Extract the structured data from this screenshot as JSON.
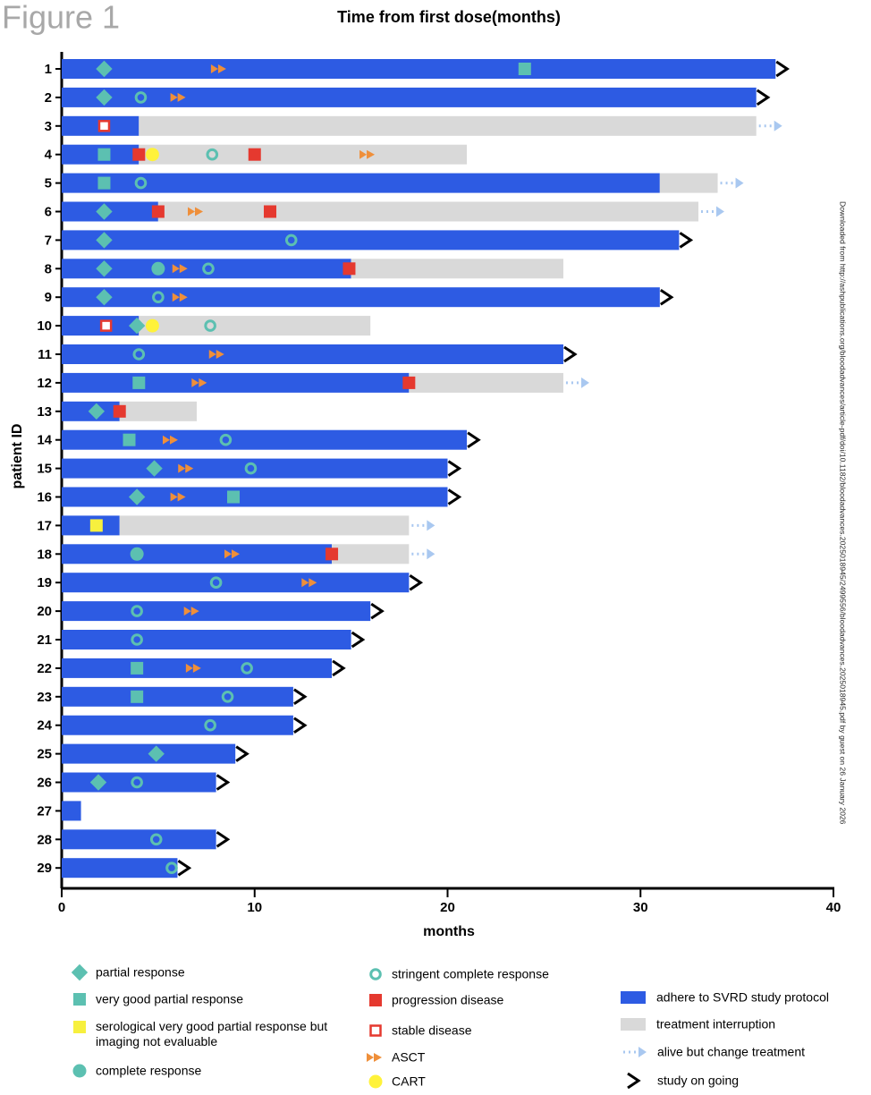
{
  "figure_label": "Figure 1",
  "side_note": "Downloaded from http://ashpublications.org/bloodadvances/article-pdf/doi/10.1182/bloodadvances.2025018945/2499556/bloodadvances.2025018945.pdf by guest on 26 January 2026",
  "chart_data": {
    "type": "swimmer",
    "title": "Time from first dose(months)",
    "x_label": "months",
    "y_label": "patient ID",
    "xlim": [
      0,
      40
    ],
    "xticks": [
      0,
      10,
      20,
      30,
      40
    ],
    "categories": [
      "1",
      "2",
      "3",
      "4",
      "5",
      "6",
      "7",
      "8",
      "9",
      "10",
      "11",
      "12",
      "13",
      "14",
      "15",
      "16",
      "17",
      "18",
      "19",
      "20",
      "21",
      "22",
      "23",
      "24",
      "25",
      "26",
      "27",
      "28",
      "29"
    ],
    "series": [
      {
        "name": "adhere to SVRD study protocol",
        "color": "#2d5be3",
        "values": [
          37,
          36,
          4,
          4,
          31,
          5,
          32,
          15,
          31,
          4,
          26,
          18,
          3,
          21,
          20,
          20,
          3,
          14,
          18,
          16,
          15,
          14,
          12,
          12,
          9,
          8,
          1,
          8,
          6
        ]
      },
      {
        "name": "treatment interruption",
        "color": "#d9d9d9",
        "values": [
          null,
          null,
          32,
          17,
          3,
          28,
          null,
          11,
          null,
          12,
          null,
          8,
          4,
          null,
          null,
          null,
          15,
          4,
          null,
          null,
          null,
          null,
          null,
          null,
          null,
          null,
          null,
          null,
          null
        ]
      }
    ],
    "markers": [
      {
        "name": "partial response",
        "shape": "diamond",
        "color": "#5cc0b1",
        "patients": [
          "1",
          "2",
          "6",
          "7",
          "8",
          "9",
          "10",
          "13",
          "15",
          "16",
          "25",
          "26"
        ],
        "x": [
          2.2,
          2.2,
          2.2,
          2.2,
          2.2,
          2.2,
          3.9,
          1.8,
          4.8,
          3.9,
          4.9,
          1.9
        ]
      },
      {
        "name": "very good partial response",
        "shape": "square",
        "color": "#5cc0b1",
        "patients": [
          "1",
          "4",
          "5",
          "12",
          "14",
          "16",
          "22",
          "23"
        ],
        "x": [
          24,
          2.2,
          2.2,
          4.0,
          3.5,
          8.9,
          3.9,
          3.9
        ]
      },
      {
        "name": "serological very good partial response but imaging not evaluable",
        "shape": "square",
        "color": "#f7f03e",
        "patients": [
          "17"
        ],
        "x": [
          1.8
        ]
      },
      {
        "name": "complete response",
        "shape": "circle",
        "color": "#5cc0b1",
        "patients": [
          "8",
          "18"
        ],
        "x": [
          5.0,
          3.9
        ]
      },
      {
        "name": "stringent complete response",
        "shape": "ring",
        "color": "#5cc0b1",
        "patients": [
          "2",
          "4",
          "5",
          "7",
          "8",
          "9",
          "10",
          "11",
          "14",
          "15",
          "19",
          "20",
          "21",
          "22",
          "23",
          "24",
          "26",
          "28",
          "29"
        ],
        "x": [
          4.1,
          7.8,
          4.1,
          11.9,
          7.6,
          5.0,
          7.7,
          4.0,
          8.5,
          9.8,
          8.0,
          3.9,
          3.9,
          9.6,
          8.6,
          7.7,
          3.9,
          4.9,
          5.7
        ]
      },
      {
        "name": "progression disease",
        "shape": "square",
        "color": "#e5392f",
        "patients": [
          "4",
          "4",
          "6",
          "6",
          "8",
          "12",
          "13",
          "18"
        ],
        "x": [
          4.0,
          10.0,
          5.0,
          10.8,
          14.9,
          18.0,
          3.0,
          14.0
        ]
      },
      {
        "name": "stable disease",
        "shape": "hollow-square",
        "color": "#e5392f",
        "patients": [
          "3",
          "10"
        ],
        "x": [
          2.2,
          2.3
        ]
      },
      {
        "name": "ASCT",
        "shape": "double-arrow",
        "color": "#ef8f3a",
        "patients": [
          "1",
          "2",
          "4",
          "6",
          "8",
          "9",
          "11",
          "12",
          "14",
          "15",
          "16",
          "18",
          "19",
          "20",
          "22"
        ],
        "x": [
          8.2,
          6.1,
          15.9,
          7.0,
          6.2,
          6.2,
          8.1,
          7.2,
          5.7,
          6.5,
          6.1,
          8.9,
          12.9,
          6.8,
          6.9
        ]
      },
      {
        "name": "CART",
        "shape": "circle",
        "color": "#fff23a",
        "patients": [
          "4",
          "10"
        ],
        "x": [
          4.7,
          4.7
        ]
      },
      {
        "name": "alive but change treatment",
        "shape": "dotted-arrow",
        "color": "#a9c8f0",
        "patients": [
          "3",
          "5",
          "6",
          "12",
          "17",
          "18"
        ],
        "x": [
          36,
          34,
          33,
          26,
          18,
          18
        ]
      },
      {
        "name": "study on going",
        "shape": "chevron",
        "color": "#000000",
        "patients": [
          "1",
          "2",
          "7",
          "9",
          "11",
          "14",
          "15",
          "16",
          "19",
          "20",
          "21",
          "22",
          "23",
          "24",
          "25",
          "26",
          "28",
          "29"
        ],
        "x": [
          37,
          36,
          32,
          31,
          26,
          21,
          20,
          20,
          18,
          16,
          15,
          14,
          12,
          12,
          9,
          8,
          8,
          6
        ]
      }
    ]
  }
}
